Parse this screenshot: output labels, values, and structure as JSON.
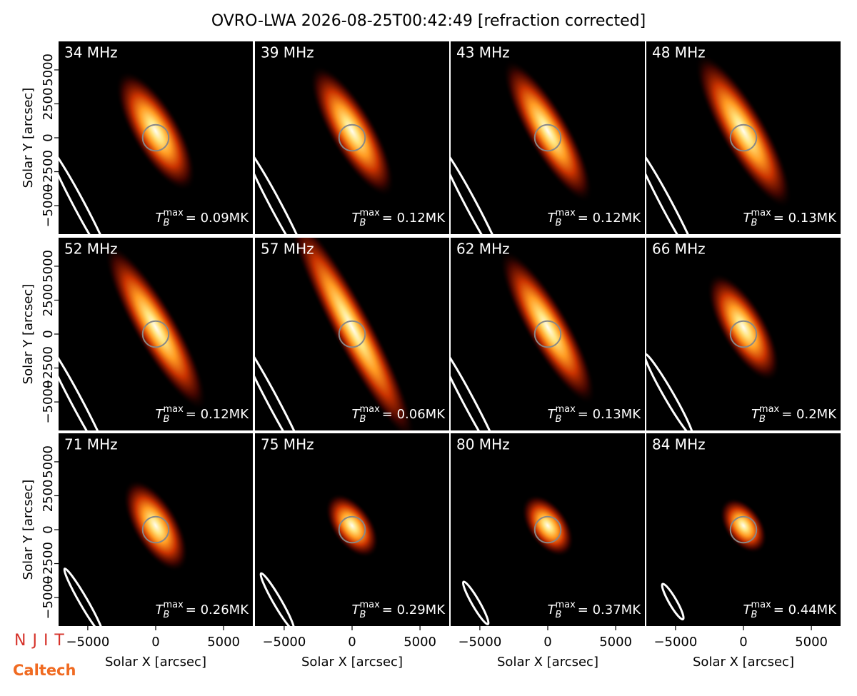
{
  "chart_data": {
    "type": "image_grid",
    "title": "OVRO-LWA 2026-08-25T00:42:49 [refraction corrected]",
    "xlabel": "Solar X [arcsec]",
    "ylabel": "Solar Y [arcsec]",
    "xlim": [
      -7150,
      7150
    ],
    "ylim": [
      -7100,
      7100
    ],
    "xticks": [
      {
        "value": -5000,
        "label": "−5000"
      },
      0,
      5000
    ],
    "yticks": [
      {
        "value": -5000,
        "label": "−5000"
      },
      {
        "value": -2500,
        "label": "−2500"
      },
      0,
      2500,
      5000
    ],
    "tb_symbol": {
      "base": "T",
      "sub": "B",
      "sup": "max"
    },
    "logos": [
      "NJIT",
      "Caltech"
    ],
    "panels": [
      {
        "label": "34 MHz",
        "tb_label": "= 0.09MK",
        "source": {
          "x": 0,
          "y": 500,
          "major": 5000,
          "minor": 1800,
          "angle": 120
        },
        "beam": {
          "x": -5600,
          "y": -5000,
          "major": 5000,
          "minor": 400,
          "angle": 118
        }
      },
      {
        "label": "39 MHz",
        "tb_label": "= 0.12MK",
        "source": {
          "x": 0,
          "y": 500,
          "major": 5500,
          "minor": 1700,
          "angle": 120
        },
        "beam": {
          "x": -5600,
          "y": -5000,
          "major": 5000,
          "minor": 400,
          "angle": 118
        }
      },
      {
        "label": "43 MHz",
        "tb_label": "= 0.12MK",
        "source": {
          "x": 0,
          "y": 500,
          "major": 6000,
          "minor": 1600,
          "angle": 120
        },
        "beam": {
          "x": -5600,
          "y": -5000,
          "major": 5000,
          "minor": 400,
          "angle": 118
        }
      },
      {
        "label": "48 MHz",
        "tb_label": "= 0.13MK",
        "source": {
          "x": 0,
          "y": 500,
          "major": 6500,
          "minor": 1700,
          "angle": 120
        },
        "beam": {
          "x": -5600,
          "y": -5000,
          "major": 5000,
          "minor": 400,
          "angle": 118
        }
      },
      {
        "label": "52 MHz",
        "tb_label": "= 0.12MK",
        "source": {
          "x": 0,
          "y": 500,
          "major": 7000,
          "minor": 1600,
          "angle": 120
        },
        "beam": {
          "x": -5800,
          "y": -5000,
          "major": 5200,
          "minor": 400,
          "angle": 118
        }
      },
      {
        "label": "57 MHz",
        "tb_label": "= 0.06MK",
        "source": {
          "x": 0,
          "y": 500,
          "major": 9500,
          "minor": 1500,
          "angle": 118
        },
        "beam": {
          "x": -5800,
          "y": -5000,
          "major": 5500,
          "minor": 400,
          "angle": 118
        }
      },
      {
        "label": "62 MHz",
        "tb_label": "= 0.13MK",
        "source": {
          "x": 0,
          "y": 500,
          "major": 6500,
          "minor": 1600,
          "angle": 120
        },
        "beam": {
          "x": -5800,
          "y": -5000,
          "major": 5200,
          "minor": 400,
          "angle": 118
        }
      },
      {
        "label": "66 MHz",
        "tb_label": "= 0.2MK",
        "source": {
          "x": 0,
          "y": 500,
          "major": 4500,
          "minor": 1700,
          "angle": 120
        },
        "beam": {
          "x": -5500,
          "y": -4500,
          "major": 3500,
          "minor": 350,
          "angle": 120
        }
      },
      {
        "label": "71 MHz",
        "tb_label": "= 0.26MK",
        "source": {
          "x": 0,
          "y": 300,
          "major": 3800,
          "minor": 1700,
          "angle": 120
        },
        "beam": {
          "x": -5300,
          "y": -5300,
          "major": 2800,
          "minor": 300,
          "angle": 120
        }
      },
      {
        "label": "75 MHz",
        "tb_label": "= 0.29MK",
        "source": {
          "x": 0,
          "y": 300,
          "major": 2700,
          "minor": 1500,
          "angle": 125
        },
        "beam": {
          "x": -5500,
          "y": -5300,
          "major": 2400,
          "minor": 300,
          "angle": 120
        }
      },
      {
        "label": "80 MHz",
        "tb_label": "= 0.37MK",
        "source": {
          "x": 0,
          "y": 300,
          "major": 2600,
          "minor": 1500,
          "angle": 125
        },
        "beam": {
          "x": -5300,
          "y": -5400,
          "major": 1800,
          "minor": 280,
          "angle": 120
        }
      },
      {
        "label": "84 MHz",
        "tb_label": "= 0.44MK",
        "source": {
          "x": 0,
          "y": 300,
          "major": 2300,
          "minor": 1400,
          "angle": 125
        },
        "beam": {
          "x": -5200,
          "y": -5300,
          "major": 1500,
          "minor": 280,
          "angle": 120
        }
      }
    ]
  }
}
